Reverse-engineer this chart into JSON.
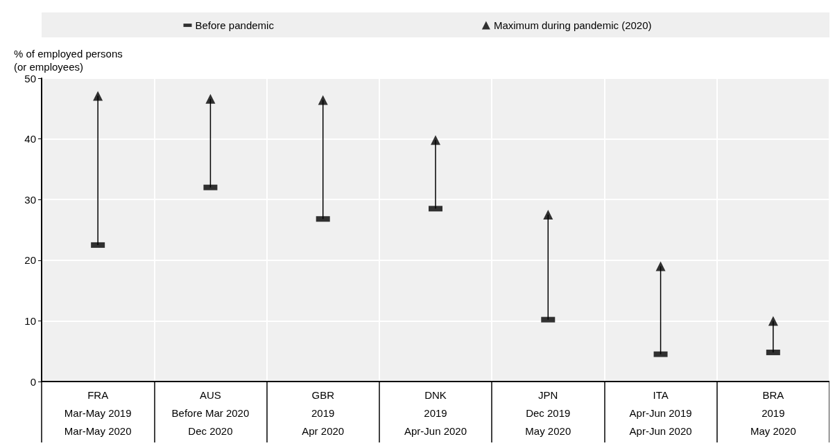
{
  "chart_data": {
    "type": "scatter",
    "ylabel": "% of employed persons\n(or employees)",
    "categories": [
      "FRA\nMar-May 2019\nMar-May 2020",
      "AUS\nBefore Mar 2020\nDec 2020",
      "GBR\n2019\nApr 2020",
      "DNK\n2019\nApr-Jun 2020",
      "JPN\nDec 2019\nMay 2020",
      "ITA\nApr-Jun 2019\nApr-Jun 2020",
      "BRA\n2019\nMay 2020"
    ],
    "series": [
      {
        "name": "Before pandemic",
        "color": "#000000",
        "marker": "square",
        "values": [
          22.5,
          32.0,
          26.8,
          28.5,
          10.2,
          4.5,
          4.8
        ]
      },
      {
        "name": "Maximum during pandemic (2020)",
        "color": "#000000",
        "marker": "triangle",
        "values": [
          47.1,
          46.6,
          46.4,
          39.8,
          27.5,
          19.0,
          10.0
        ]
      }
    ],
    "ylim": [
      0,
      50
    ],
    "yticks": [
      0,
      10,
      20,
      30,
      40,
      50
    ],
    "grid": true,
    "legend": "top"
  }
}
